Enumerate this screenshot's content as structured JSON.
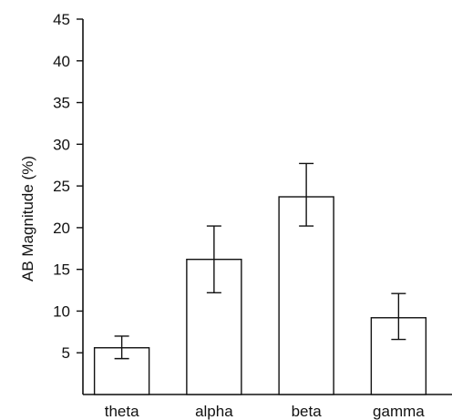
{
  "chart_data": {
    "type": "bar",
    "categories": [
      "theta",
      "alpha",
      "beta",
      "gamma"
    ],
    "values": [
      5.6,
      16.2,
      23.7,
      9.2
    ],
    "error_low": [
      4.3,
      12.2,
      20.2,
      6.6
    ],
    "error_high": [
      7.0,
      20.2,
      27.7,
      12.1
    ],
    "title": "",
    "xlabel": "",
    "ylabel": "AB Magnitude (%)",
    "ylim": [
      0,
      45
    ],
    "yticks": [
      5,
      10,
      15,
      20,
      25,
      30,
      35,
      40,
      45
    ],
    "grid": false,
    "legend": "none",
    "colors": {
      "bar_fill": "#ffffff",
      "stroke": "#111111"
    }
  }
}
